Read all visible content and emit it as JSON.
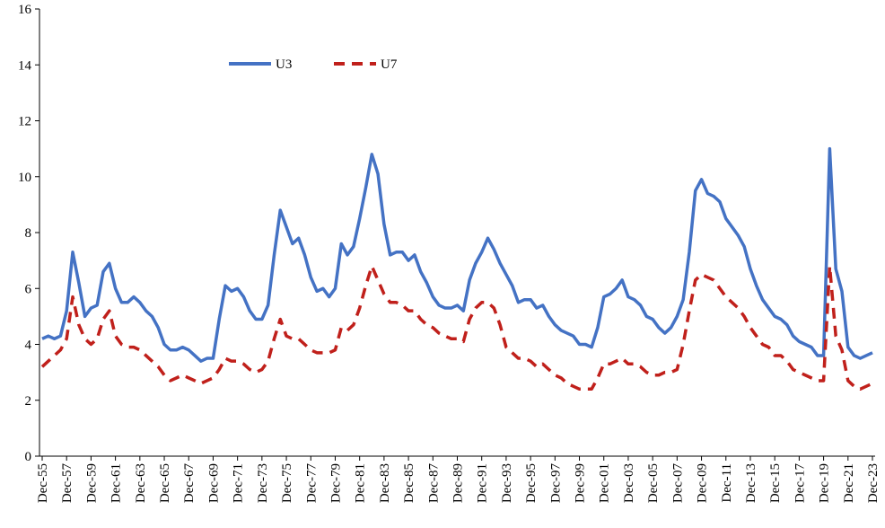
{
  "chart_data": {
    "type": "line",
    "categories": [
      "Dec-55",
      null,
      null,
      null,
      "Dec-57",
      null,
      null,
      null,
      "Dec-59",
      null,
      null,
      null,
      "Dec-61",
      null,
      null,
      null,
      "Dec-63",
      null,
      null,
      null,
      "Dec-65",
      null,
      null,
      null,
      "Dec-67",
      null,
      null,
      null,
      "Dec-69",
      null,
      null,
      null,
      "Dec-71",
      null,
      null,
      null,
      "Dec-73",
      null,
      null,
      null,
      "Dec-75",
      null,
      null,
      null,
      "Dec-77",
      null,
      null,
      null,
      "Dec-79",
      null,
      null,
      null,
      "Dec-81",
      null,
      null,
      null,
      "Dec-83",
      null,
      null,
      null,
      "Dec-85",
      null,
      null,
      null,
      "Dec-87",
      null,
      null,
      null,
      "Dec-89",
      null,
      null,
      null,
      "Dec-91",
      null,
      null,
      null,
      "Dec-93",
      null,
      null,
      null,
      "Dec-95",
      null,
      null,
      null,
      "Dec-97",
      null,
      null,
      null,
      "Dec-99",
      null,
      null,
      null,
      "Dec-01",
      null,
      null,
      null,
      "Dec-03",
      null,
      null,
      null,
      "Dec-05",
      null,
      null,
      null,
      "Dec-07",
      null,
      null,
      null,
      "Dec-09",
      null,
      null,
      null,
      "Dec-11",
      null,
      null,
      null,
      "Dec-13",
      null,
      null,
      null,
      "Dec-15",
      null,
      null,
      null,
      "Dec-17",
      null,
      null,
      null,
      "Dec-19",
      null,
      null,
      null,
      "Dec-21",
      null,
      null,
      null,
      "Dec-23"
    ],
    "series": [
      {
        "name": "U3",
        "color": "#4472c4",
        "dash": false,
        "values": [
          4.2,
          4.3,
          4.2,
          4.3,
          5.2,
          7.3,
          6.2,
          5.0,
          5.3,
          5.4,
          6.6,
          6.9,
          6.0,
          5.5,
          5.5,
          5.7,
          5.5,
          5.2,
          5.0,
          4.6,
          4.0,
          3.8,
          3.8,
          3.9,
          3.8,
          3.6,
          3.4,
          3.5,
          3.5,
          4.9,
          6.1,
          5.9,
          6.0,
          5.7,
          5.2,
          4.9,
          4.9,
          5.4,
          7.2,
          8.8,
          8.2,
          7.6,
          7.8,
          7.2,
          6.4,
          5.9,
          6.0,
          5.7,
          6.0,
          7.6,
          7.2,
          7.5,
          8.5,
          9.6,
          10.8,
          10.1,
          8.3,
          7.2,
          7.3,
          7.3,
          7.0,
          7.2,
          6.6,
          6.2,
          5.7,
          5.4,
          5.3,
          5.3,
          5.4,
          5.2,
          6.3,
          6.9,
          7.3,
          7.8,
          7.4,
          6.9,
          6.5,
          6.1,
          5.5,
          5.6,
          5.6,
          5.3,
          5.4,
          5.0,
          4.7,
          4.5,
          4.4,
          4.3,
          4.0,
          4.0,
          3.9,
          4.6,
          5.7,
          5.8,
          6.0,
          6.3,
          5.7,
          5.6,
          5.4,
          5.0,
          4.9,
          4.6,
          4.4,
          4.6,
          5.0,
          5.6,
          7.3,
          9.5,
          9.9,
          9.4,
          9.3,
          9.1,
          8.5,
          8.2,
          7.9,
          7.5,
          6.7,
          6.1,
          5.6,
          5.3,
          5.0,
          4.9,
          4.7,
          4.3,
          4.1,
          4.0,
          3.9,
          3.6,
          3.6,
          11.0,
          6.7,
          5.9,
          3.9,
          3.6,
          3.5,
          3.6,
          3.7
        ]
      },
      {
        "name": "U7",
        "color": "#c0201b",
        "dash": true,
        "values": [
          3.2,
          3.4,
          3.6,
          3.8,
          4.2,
          5.7,
          4.7,
          4.2,
          4.0,
          4.2,
          4.9,
          5.2,
          4.3,
          4.0,
          3.9,
          3.9,
          3.8,
          3.6,
          3.4,
          3.2,
          2.9,
          2.7,
          2.8,
          2.9,
          2.8,
          2.7,
          2.6,
          2.7,
          2.8,
          3.1,
          3.5,
          3.4,
          3.4,
          3.3,
          3.1,
          3.0,
          3.1,
          3.4,
          4.2,
          4.9,
          4.3,
          4.2,
          4.2,
          4.0,
          3.8,
          3.7,
          3.7,
          3.7,
          3.8,
          4.6,
          4.5,
          4.7,
          5.3,
          6.1,
          6.8,
          6.3,
          5.8,
          5.5,
          5.5,
          5.4,
          5.2,
          5.2,
          4.9,
          4.7,
          4.6,
          4.4,
          4.3,
          4.2,
          4.2,
          4.1,
          4.9,
          5.3,
          5.5,
          5.5,
          5.3,
          4.7,
          3.9,
          3.7,
          3.5,
          3.5,
          3.4,
          3.2,
          3.3,
          3.1,
          2.9,
          2.8,
          2.6,
          2.5,
          2.4,
          2.4,
          2.4,
          2.8,
          3.3,
          3.3,
          3.4,
          3.5,
          3.3,
          3.3,
          3.2,
          3.0,
          2.9,
          2.9,
          3.0,
          3.0,
          3.1,
          4.0,
          5.2,
          6.3,
          6.5,
          6.4,
          6.3,
          6.0,
          5.7,
          5.5,
          5.3,
          5.0,
          4.6,
          4.3,
          4.0,
          3.9,
          3.6,
          3.6,
          3.4,
          3.1,
          3.0,
          2.9,
          2.8,
          2.7,
          2.7,
          6.8,
          4.3,
          3.8,
          2.7,
          2.5,
          2.4,
          2.5,
          2.6
        ]
      }
    ],
    "ylim": [
      0,
      16
    ],
    "yticks": [
      0,
      2,
      4,
      6,
      8,
      10,
      12,
      14,
      16
    ],
    "grid": false
  }
}
